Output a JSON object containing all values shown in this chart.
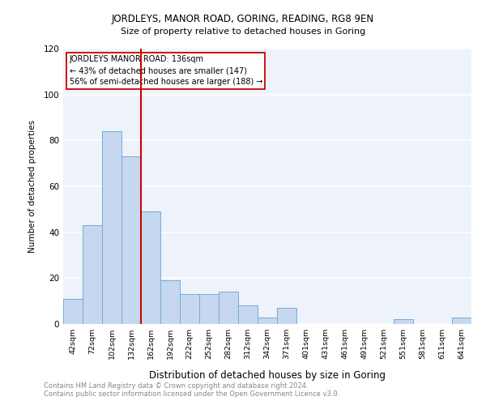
{
  "title1": "JORDLEYS, MANOR ROAD, GORING, READING, RG8 9EN",
  "title2": "Size of property relative to detached houses in Goring",
  "xlabel": "Distribution of detached houses by size in Goring",
  "ylabel": "Number of detached properties",
  "categories": [
    "42sqm",
    "72sqm",
    "102sqm",
    "132sqm",
    "162sqm",
    "192sqm",
    "222sqm",
    "252sqm",
    "282sqm",
    "312sqm",
    "342sqm",
    "371sqm",
    "401sqm",
    "431sqm",
    "461sqm",
    "491sqm",
    "521sqm",
    "551sqm",
    "581sqm",
    "611sqm",
    "641sqm"
  ],
  "values": [
    11,
    43,
    84,
    73,
    49,
    19,
    13,
    13,
    14,
    8,
    3,
    7,
    0,
    0,
    0,
    0,
    0,
    2,
    0,
    0,
    3
  ],
  "bar_color": "#c5d8f0",
  "bar_edge_color": "#7aaad0",
  "background_color": "#eef2fa",
  "grid_color": "#ffffff",
  "vline_x": 3.5,
  "vline_color": "#cc0000",
  "annotation_line1": "JORDLEYS MANOR ROAD: 136sqm",
  "annotation_line2": "← 43% of detached houses are smaller (147)",
  "annotation_line3": "56% of semi-detached houses are larger (188) →",
  "annotation_box_color": "#ffffff",
  "annotation_box_edge": "#cc0000",
  "footnote1": "Contains HM Land Registry data © Crown copyright and database right 2024.",
  "footnote2": "Contains public sector information licensed under the Open Government Licence v3.0.",
  "ylim": [
    0,
    120
  ],
  "yticks": [
    0,
    20,
    40,
    60,
    80,
    100,
    120
  ]
}
